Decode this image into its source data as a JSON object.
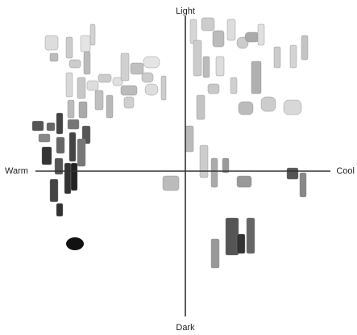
{
  "axes": {
    "top": "Light",
    "bottom": "Dark",
    "left": "Warm",
    "right": "Cool"
  }
}
